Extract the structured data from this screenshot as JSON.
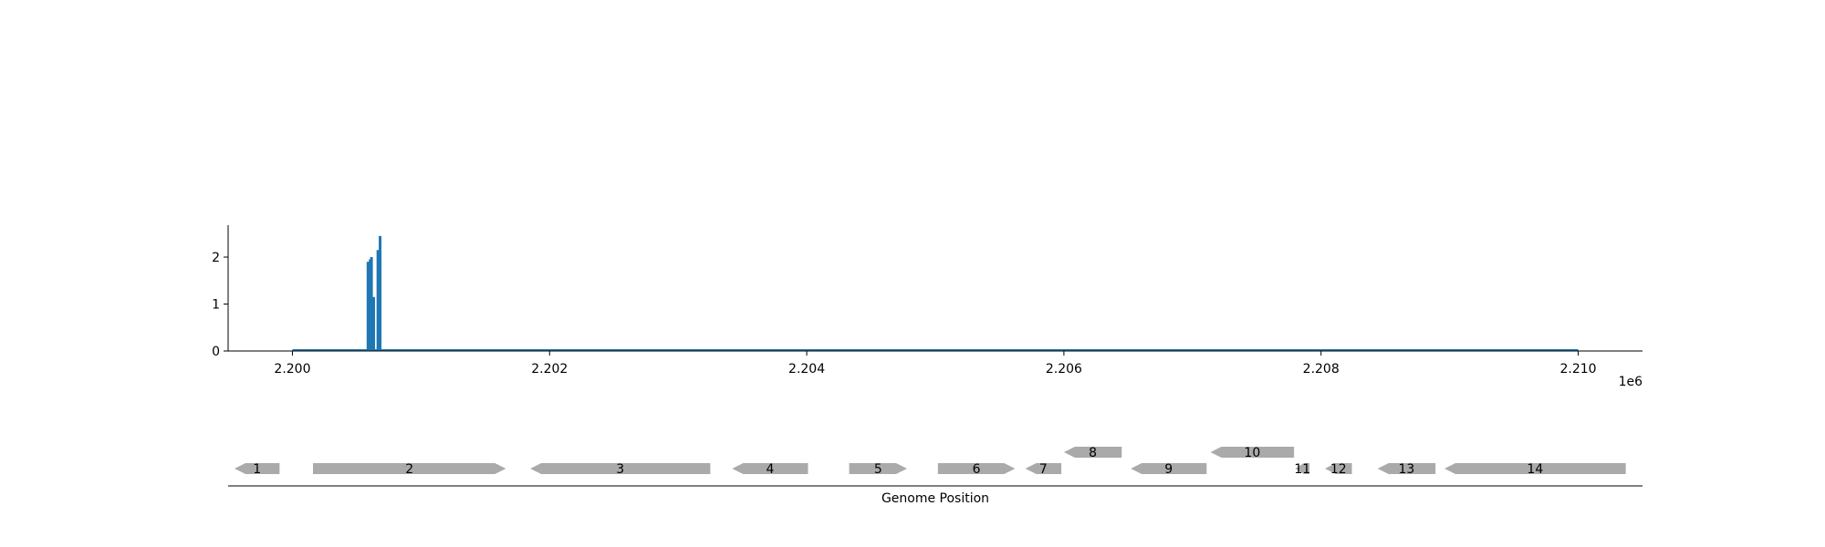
{
  "chart_data": {
    "type": "bar",
    "x_offset_label": "1e6",
    "xlim": [
      2.1995,
      2.2105
    ],
    "ylim": [
      0,
      2.68
    ],
    "x_ticks": [
      {
        "value": 2.2,
        "label": "2.200"
      },
      {
        "value": 2.202,
        "label": "2.202"
      },
      {
        "value": 2.204,
        "label": "2.204"
      },
      {
        "value": 2.206,
        "label": "2.206"
      },
      {
        "value": 2.208,
        "label": "2.208"
      },
      {
        "value": 2.21,
        "label": "2.210"
      }
    ],
    "y_ticks": [
      {
        "value": 0,
        "label": "0"
      },
      {
        "value": 1,
        "label": "1"
      },
      {
        "value": 2,
        "label": "2"
      }
    ],
    "baseline_range": [
      2.2,
      2.21
    ],
    "bar_color": "#1f77b4",
    "bars": [
      {
        "x": 2.200588,
        "y": 1.9
      },
      {
        "x": 2.200605,
        "y": 1.95
      },
      {
        "x": 2.200615,
        "y": 2.0
      },
      {
        "x": 2.200632,
        "y": 1.15
      },
      {
        "x": 2.200665,
        "y": 2.15
      },
      {
        "x": 2.200682,
        "y": 2.45
      }
    ],
    "gene_track": {
      "xlabel": "Genome Position",
      "gene_color": "#aaaaaa",
      "genes": [
        {
          "label": "1",
          "start": 2.19955,
          "end": 2.1999,
          "strand": "-",
          "row": 0
        },
        {
          "label": "2",
          "start": 2.20016,
          "end": 2.20166,
          "strand": "+",
          "row": 0
        },
        {
          "label": "3",
          "start": 2.20185,
          "end": 2.20325,
          "strand": "-",
          "row": 0
        },
        {
          "label": "4",
          "start": 2.20342,
          "end": 2.20401,
          "strand": "-",
          "row": 0
        },
        {
          "label": "5",
          "start": 2.20433,
          "end": 2.20478,
          "strand": "+",
          "row": 0
        },
        {
          "label": "6",
          "start": 2.20502,
          "end": 2.20562,
          "strand": "+",
          "row": 0
        },
        {
          "label": "7",
          "start": 2.2057,
          "end": 2.20598,
          "strand": "-",
          "row": 0
        },
        {
          "label": "8",
          "start": 2.206,
          "end": 2.20645,
          "strand": "-",
          "row": 1
        },
        {
          "label": "9",
          "start": 2.20652,
          "end": 2.20711,
          "strand": "-",
          "row": 0
        },
        {
          "label": "10",
          "start": 2.20714,
          "end": 2.20779,
          "strand": "-",
          "row": 1
        },
        {
          "label": "11",
          "start": 2.2078,
          "end": 2.20791,
          "strand": "-",
          "row": 0
        },
        {
          "label": "12",
          "start": 2.20803,
          "end": 2.20824,
          "strand": "-",
          "row": 0
        },
        {
          "label": "13",
          "start": 2.20844,
          "end": 2.20889,
          "strand": "-",
          "row": 0
        },
        {
          "label": "14",
          "start": 2.20896,
          "end": 2.21037,
          "strand": "-",
          "row": 0
        }
      ]
    }
  }
}
